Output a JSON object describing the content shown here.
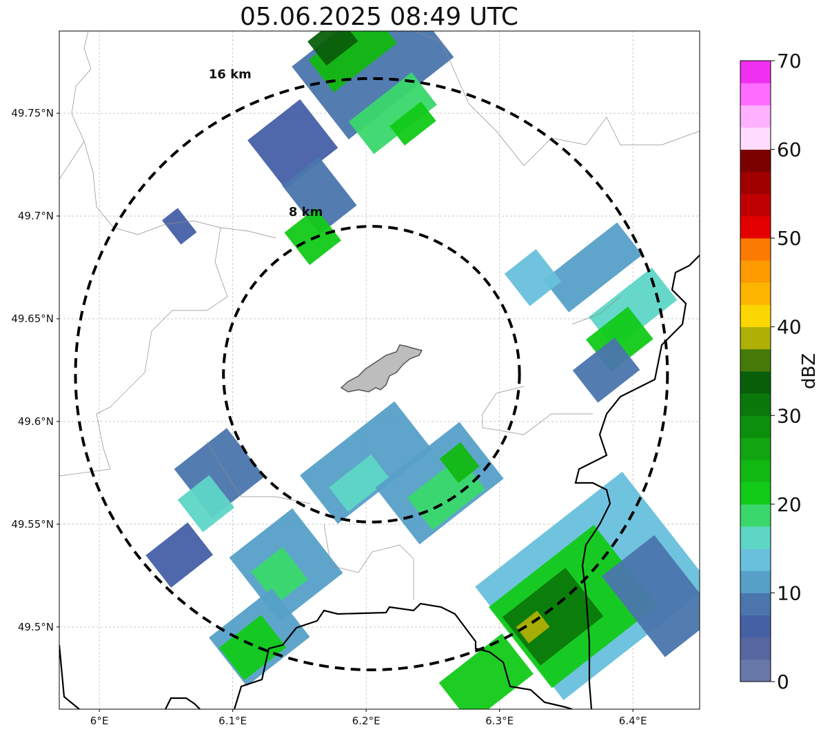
{
  "title": "05.06.2025 08:49 UTC",
  "map": {
    "lon_range": [
      5.97,
      6.45
    ],
    "lat_range": [
      49.46,
      49.79
    ],
    "x_ticks": [
      {
        "value": 6.0,
        "label": "6°E"
      },
      {
        "value": 6.1,
        "label": "6.1°E"
      },
      {
        "value": 6.2,
        "label": "6.2°E"
      },
      {
        "value": 6.3,
        "label": "6.3°E"
      },
      {
        "value": 6.4,
        "label": "6.4°E"
      }
    ],
    "y_ticks": [
      {
        "value": 49.75,
        "label": "49.75°N"
      },
      {
        "value": 49.7,
        "label": "49.7°N"
      },
      {
        "value": 49.65,
        "label": "49.65°N"
      },
      {
        "value": 49.6,
        "label": "49.6°N"
      },
      {
        "value": 49.55,
        "label": "49.55°N"
      },
      {
        "value": 49.5,
        "label": "49.5°N"
      }
    ],
    "grid": true,
    "radar_center": {
      "lon": 6.204,
      "lat": 49.623
    },
    "range_rings": [
      {
        "radius_km": 8,
        "label": "8 km"
      },
      {
        "radius_km": 16,
        "label": "16 km"
      }
    ],
    "ring_labels": [
      {
        "text": "16 km",
        "lon": 6.082,
        "lat": 49.767
      },
      {
        "text": "8 km",
        "lon": 6.142,
        "lat": 49.7
      }
    ]
  },
  "colorbar": {
    "label": "dBZ",
    "min": 0,
    "max": 70,
    "tick_values": [
      0,
      10,
      20,
      30,
      40,
      50,
      60,
      70
    ],
    "tick_labels": [
      "0",
      "10",
      "20",
      "30",
      "40",
      "50",
      "60",
      "70"
    ],
    "colors": [
      "#6878a8",
      "#5866a0",
      "#4660a6",
      "#4a76ad",
      "#56a0c8",
      "#68c0dc",
      "#5ed6c6",
      "#3ad86c",
      "#12ca18",
      "#12b812",
      "#12a512",
      "#0c8f0c",
      "#0b780b",
      "#095f09",
      "#457a09",
      "#aeb006",
      "#fcd600",
      "#fcb400",
      "#fc9a00",
      "#fc7a00",
      "#e40000",
      "#c00000",
      "#a00000",
      "#7a0000",
      "#ffdcff",
      "#ffb0ff",
      "#ff6cff",
      "#f030f0"
    ]
  },
  "echo_cells": [
    {
      "lon": 6.205,
      "lat": 49.775,
      "w": 0.1,
      "h": 0.045,
      "dbz": 8
    },
    {
      "lon": 6.19,
      "lat": 49.78,
      "w": 0.06,
      "h": 0.02,
      "dbz": 24
    },
    {
      "lon": 6.175,
      "lat": 49.785,
      "w": 0.03,
      "h": 0.015,
      "dbz": 33
    },
    {
      "lon": 6.22,
      "lat": 49.75,
      "w": 0.06,
      "h": 0.02,
      "dbz": 18
    },
    {
      "lon": 6.235,
      "lat": 49.745,
      "w": 0.03,
      "h": 0.012,
      "dbz": 22
    },
    {
      "lon": 6.145,
      "lat": 49.735,
      "w": 0.05,
      "h": 0.03,
      "dbz": 6
    },
    {
      "lon": 6.165,
      "lat": 49.71,
      "w": 0.035,
      "h": 0.03,
      "dbz": 9
    },
    {
      "lon": 6.16,
      "lat": 49.69,
      "w": 0.03,
      "h": 0.02,
      "dbz": 20
    },
    {
      "lon": 6.06,
      "lat": 49.695,
      "w": 0.015,
      "h": 0.015,
      "dbz": 5
    },
    {
      "lon": 6.37,
      "lat": 49.675,
      "w": 0.07,
      "h": 0.02,
      "dbz": 12
    },
    {
      "lon": 6.4,
      "lat": 49.655,
      "w": 0.06,
      "h": 0.02,
      "dbz": 17
    },
    {
      "lon": 6.39,
      "lat": 49.64,
      "w": 0.04,
      "h": 0.02,
      "dbz": 20
    },
    {
      "lon": 6.38,
      "lat": 49.625,
      "w": 0.04,
      "h": 0.02,
      "dbz": 9
    },
    {
      "lon": 6.325,
      "lat": 49.67,
      "w": 0.03,
      "h": 0.02,
      "dbz": 14
    },
    {
      "lon": 6.09,
      "lat": 49.575,
      "w": 0.05,
      "h": 0.03,
      "dbz": 8
    },
    {
      "lon": 6.08,
      "lat": 49.56,
      "w": 0.03,
      "h": 0.02,
      "dbz": 17
    },
    {
      "lon": 6.06,
      "lat": 49.535,
      "w": 0.04,
      "h": 0.02,
      "dbz": 6
    },
    {
      "lon": 6.2,
      "lat": 49.58,
      "w": 0.09,
      "h": 0.03,
      "dbz": 10
    },
    {
      "lon": 6.195,
      "lat": 49.57,
      "w": 0.04,
      "h": 0.015,
      "dbz": 15
    },
    {
      "lon": 6.255,
      "lat": 49.57,
      "w": 0.08,
      "h": 0.035,
      "dbz": 12
    },
    {
      "lon": 6.26,
      "lat": 49.565,
      "w": 0.05,
      "h": 0.02,
      "dbz": 18
    },
    {
      "lon": 6.27,
      "lat": 49.58,
      "w": 0.02,
      "h": 0.015,
      "dbz": 24
    },
    {
      "lon": 6.14,
      "lat": 49.53,
      "w": 0.06,
      "h": 0.04,
      "dbz": 10
    },
    {
      "lon": 6.135,
      "lat": 49.525,
      "w": 0.03,
      "h": 0.02,
      "dbz": 18
    },
    {
      "lon": 6.12,
      "lat": 49.495,
      "w": 0.06,
      "h": 0.03,
      "dbz": 11
    },
    {
      "lon": 6.115,
      "lat": 49.49,
      "w": 0.04,
      "h": 0.02,
      "dbz": 22
    },
    {
      "lon": 6.37,
      "lat": 49.52,
      "w": 0.14,
      "h": 0.07,
      "dbz": 14
    },
    {
      "lon": 6.355,
      "lat": 49.51,
      "w": 0.1,
      "h": 0.05,
      "dbz": 22
    },
    {
      "lon": 6.34,
      "lat": 49.505,
      "w": 0.06,
      "h": 0.03,
      "dbz": 30
    },
    {
      "lon": 6.325,
      "lat": 49.5,
      "w": 0.02,
      "h": 0.01,
      "dbz": 38
    },
    {
      "lon": 6.29,
      "lat": 49.475,
      "w": 0.06,
      "h": 0.025,
      "dbz": 20
    },
    {
      "lon": 6.42,
      "lat": 49.515,
      "w": 0.05,
      "h": 0.05,
      "dbz": 8
    }
  ],
  "town_marker_label": ""
}
